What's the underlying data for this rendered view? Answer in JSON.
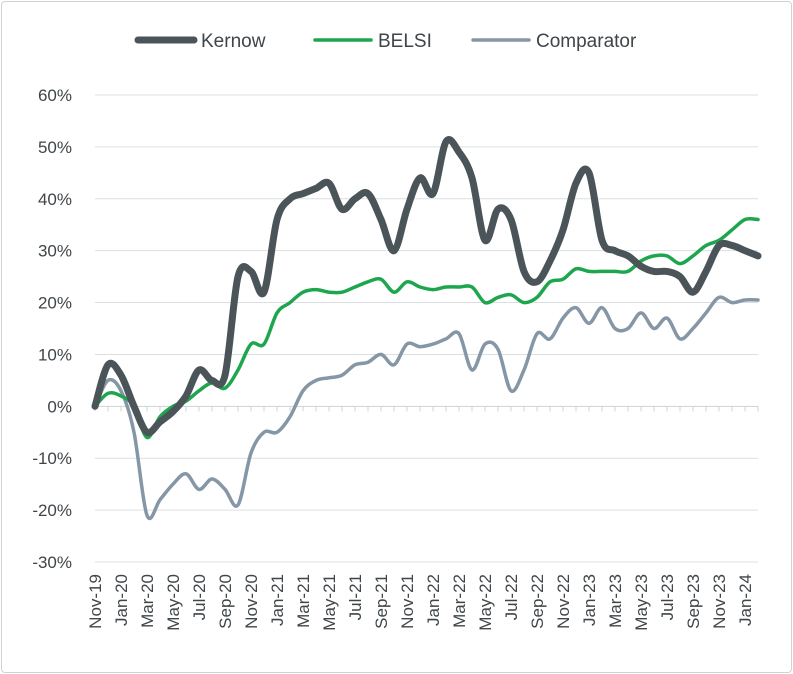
{
  "chart_data": {
    "type": "line",
    "title": "",
    "xlabel": "",
    "ylabel": "",
    "ylim": [
      -30,
      60
    ],
    "y_ticks": [
      "60%",
      "50%",
      "40%",
      "30%",
      "20%",
      "10%",
      "0%",
      "-10%",
      "-20%",
      "-30%"
    ],
    "y_tick_values": [
      60,
      50,
      40,
      30,
      20,
      10,
      0,
      -10,
      -20,
      -30
    ],
    "x_tick_labels": [
      "Nov-19",
      "Jan-20",
      "Mar-20",
      "May-20",
      "Jul-20",
      "Sep-20",
      "Nov-20",
      "Jan-21",
      "Mar-21",
      "May-21",
      "Jul-21",
      "Sep-21",
      "Nov-21",
      "Jan-22",
      "Mar-22",
      "May-22",
      "Jul-22",
      "Sep-22",
      "Nov-22",
      "Jan-23",
      "Mar-23",
      "May-23",
      "Jul-23",
      "Sep-23",
      "Nov-23",
      "Jan-24"
    ],
    "x": [
      "Nov-19",
      "Dec-19",
      "Jan-20",
      "Feb-20",
      "Mar-20",
      "Apr-20",
      "May-20",
      "Jun-20",
      "Jul-20",
      "Aug-20",
      "Sep-20",
      "Oct-20",
      "Nov-20",
      "Dec-20",
      "Jan-21",
      "Feb-21",
      "Mar-21",
      "Apr-21",
      "May-21",
      "Jun-21",
      "Jul-21",
      "Aug-21",
      "Sep-21",
      "Oct-21",
      "Nov-21",
      "Dec-21",
      "Jan-22",
      "Feb-22",
      "Mar-22",
      "Apr-22",
      "May-22",
      "Jun-22",
      "Jul-22",
      "Aug-22",
      "Sep-22",
      "Oct-22",
      "Nov-22",
      "Dec-22",
      "Jan-23",
      "Feb-23",
      "Mar-23",
      "Apr-23",
      "May-23",
      "Jun-23",
      "Jul-23",
      "Aug-23",
      "Sep-23",
      "Oct-23",
      "Nov-23",
      "Dec-23",
      "Jan-24",
      "Feb-24"
    ],
    "legend_position": "top",
    "grid": true,
    "series": [
      {
        "name": "Kernow",
        "color": "#4a5459",
        "stroke_width": 7,
        "values": [
          0,
          8,
          6,
          0,
          -5,
          -3,
          -1,
          2,
          7,
          5,
          6,
          25,
          26,
          22,
          36,
          40,
          41,
          42,
          43,
          38,
          40,
          41,
          36,
          30,
          38,
          44,
          41,
          51,
          49,
          44,
          32,
          38,
          36,
          26,
          24,
          28,
          34,
          43,
          45,
          32,
          30,
          29,
          27,
          26,
          26,
          25,
          22,
          26,
          31,
          31,
          30,
          29
        ]
      },
      {
        "name": "BELSI",
        "color": "#1ea64f",
        "stroke_width": 3.5,
        "values": [
          0,
          2.5,
          2,
          0,
          -6,
          -2,
          0,
          1,
          3,
          4.5,
          3.5,
          7,
          12,
          12,
          18,
          20,
          22,
          22.5,
          22,
          22,
          23,
          24,
          24.5,
          22,
          24,
          23,
          22.5,
          23,
          23,
          23,
          20,
          21,
          21.5,
          20,
          21,
          24,
          24.5,
          26.5,
          26,
          26,
          26,
          26,
          28,
          29,
          29,
          27.5,
          29,
          31,
          32,
          34,
          36,
          36
        ]
      },
      {
        "name": "Comparator",
        "color": "#8596a6",
        "stroke_width": 3.5,
        "values": [
          0,
          5,
          3,
          -5,
          -21,
          -18,
          -15,
          -13,
          -16,
          -14,
          -16,
          -19,
          -9,
          -5,
          -5,
          -2,
          3,
          5,
          5.5,
          6,
          8,
          8.5,
          10,
          8,
          12,
          11.5,
          12,
          13,
          14,
          7,
          12,
          11,
          3,
          7,
          14,
          13,
          17,
          19,
          16,
          19,
          15,
          15,
          18,
          15,
          17,
          13,
          15,
          18,
          21,
          20,
          20.5,
          20.5
        ]
      }
    ]
  }
}
